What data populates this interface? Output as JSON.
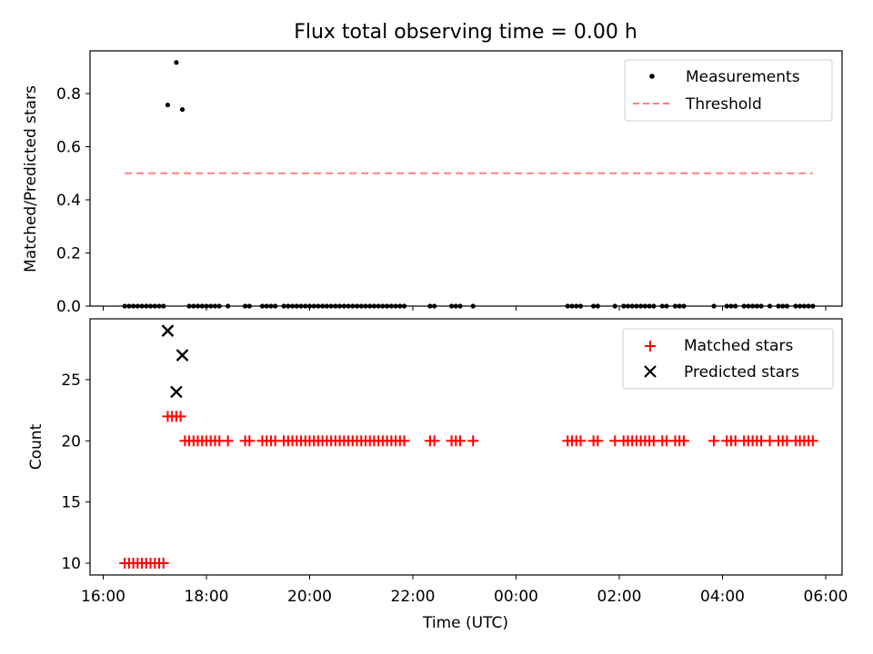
{
  "chart_data": [
    {
      "type": "scatter",
      "title": "Flux total observing time = 0.00 h",
      "xlabel": "",
      "ylabel": "Matched/Predicted stars",
      "xlim": [
        "16:00",
        "06:00"
      ],
      "ylim": [
        0,
        0.95
      ],
      "y_ticks": [
        "0.0",
        "0.2",
        "0.4",
        "0.6",
        "0.8"
      ],
      "y_tick_values": [
        0,
        0.2,
        0.4,
        0.6,
        0.8
      ],
      "legend_position": "top-right",
      "series": [
        {
          "name": "Measurements",
          "marker": "dot",
          "color": "#000000",
          "points": [
            [
              "16:25",
              0
            ],
            [
              "16:30",
              0
            ],
            [
              "16:35",
              0
            ],
            [
              "16:40",
              0
            ],
            [
              "16:45",
              0
            ],
            [
              "16:50",
              0
            ],
            [
              "16:55",
              0
            ],
            [
              "17:00",
              0
            ],
            [
              "17:05",
              0
            ],
            [
              "17:10",
              0
            ],
            [
              "17:15",
              0.757
            ],
            [
              "17:25",
              0.917
            ],
            [
              "17:32",
              0.74
            ],
            [
              "17:40",
              0
            ],
            [
              "17:45",
              0
            ],
            [
              "17:50",
              0
            ],
            [
              "17:55",
              0
            ],
            [
              "18:00",
              0
            ],
            [
              "18:05",
              0
            ],
            [
              "18:10",
              0
            ],
            [
              "18:15",
              0
            ],
            [
              "18:25",
              0
            ],
            [
              "18:45",
              0
            ],
            [
              "18:50",
              0
            ],
            [
              "19:05",
              0
            ],
            [
              "19:10",
              0
            ],
            [
              "19:15",
              0
            ],
            [
              "19:20",
              0
            ],
            [
              "19:30",
              0
            ],
            [
              "19:35",
              0
            ],
            [
              "19:40",
              0
            ],
            [
              "19:45",
              0
            ],
            [
              "19:50",
              0
            ],
            [
              "19:55",
              0
            ],
            [
              "20:00",
              0
            ],
            [
              "20:05",
              0
            ],
            [
              "20:10",
              0
            ],
            [
              "20:15",
              0
            ],
            [
              "20:20",
              0
            ],
            [
              "20:25",
              0
            ],
            [
              "20:30",
              0
            ],
            [
              "20:35",
              0
            ],
            [
              "20:40",
              0
            ],
            [
              "20:45",
              0
            ],
            [
              "20:50",
              0
            ],
            [
              "20:55",
              0
            ],
            [
              "21:00",
              0
            ],
            [
              "21:05",
              0
            ],
            [
              "21:10",
              0
            ],
            [
              "21:15",
              0
            ],
            [
              "21:20",
              0
            ],
            [
              "21:25",
              0
            ],
            [
              "21:30",
              0
            ],
            [
              "21:35",
              0
            ],
            [
              "21:40",
              0
            ],
            [
              "21:45",
              0
            ],
            [
              "21:50",
              0
            ],
            [
              "22:20",
              0
            ],
            [
              "22:25",
              0
            ],
            [
              "22:45",
              0
            ],
            [
              "22:50",
              0
            ],
            [
              "22:55",
              0
            ],
            [
              "23:10",
              0
            ],
            [
              "01:00",
              0
            ],
            [
              "01:05",
              0
            ],
            [
              "01:10",
              0
            ],
            [
              "01:15",
              0
            ],
            [
              "01:30",
              0
            ],
            [
              "01:35",
              0
            ],
            [
              "01:55",
              0
            ],
            [
              "02:05",
              0
            ],
            [
              "02:10",
              0
            ],
            [
              "02:15",
              0
            ],
            [
              "02:20",
              0
            ],
            [
              "02:25",
              0
            ],
            [
              "02:30",
              0
            ],
            [
              "02:35",
              0
            ],
            [
              "02:40",
              0
            ],
            [
              "02:50",
              0
            ],
            [
              "02:55",
              0
            ],
            [
              "03:05",
              0
            ],
            [
              "03:10",
              0
            ],
            [
              "03:15",
              0
            ],
            [
              "03:50",
              0
            ],
            [
              "04:05",
              0
            ],
            [
              "04:10",
              0
            ],
            [
              "04:15",
              0
            ],
            [
              "04:25",
              0
            ],
            [
              "04:30",
              0
            ],
            [
              "04:35",
              0
            ],
            [
              "04:40",
              0
            ],
            [
              "04:45",
              0
            ],
            [
              "04:55",
              0
            ],
            [
              "05:05",
              0
            ],
            [
              "05:10",
              0
            ],
            [
              "05:15",
              0
            ],
            [
              "05:25",
              0
            ],
            [
              "05:30",
              0
            ],
            [
              "05:35",
              0
            ],
            [
              "05:40",
              0
            ],
            [
              "05:45",
              0
            ]
          ]
        },
        {
          "name": "Threshold",
          "marker": "dashed-line",
          "color": "#ff7f7f",
          "points": [
            [
              "16:25",
              0.5
            ],
            [
              "05:45",
              0.5
            ]
          ]
        }
      ]
    },
    {
      "type": "scatter",
      "title": "",
      "xlabel": "Time (UTC)",
      "ylabel": "Count",
      "xlim": [
        "16:00",
        "06:00"
      ],
      "ylim": [
        9.2,
        29.7
      ],
      "x_ticks": [
        "16:00",
        "18:00",
        "20:00",
        "22:00",
        "00:00",
        "02:00",
        "04:00",
        "06:00"
      ],
      "y_ticks": [
        "10",
        "15",
        "20",
        "25"
      ],
      "y_tick_values": [
        10,
        15,
        20,
        25
      ],
      "legend_position": "top-right",
      "series": [
        {
          "name": "Matched stars",
          "marker": "plus",
          "color": "#ff0000",
          "points": [
            [
              "16:25",
              10
            ],
            [
              "16:30",
              10
            ],
            [
              "16:35",
              10
            ],
            [
              "16:40",
              10
            ],
            [
              "16:45",
              10
            ],
            [
              "16:50",
              10
            ],
            [
              "16:55",
              10
            ],
            [
              "17:00",
              10
            ],
            [
              "17:05",
              10
            ],
            [
              "17:10",
              10
            ],
            [
              "17:15",
              22
            ],
            [
              "17:20",
              22
            ],
            [
              "17:25",
              22
            ],
            [
              "17:30",
              22
            ],
            [
              "17:35",
              20
            ],
            [
              "17:40",
              20
            ],
            [
              "17:45",
              20
            ],
            [
              "17:50",
              20
            ],
            [
              "17:55",
              20
            ],
            [
              "18:00",
              20
            ],
            [
              "18:05",
              20
            ],
            [
              "18:10",
              20
            ],
            [
              "18:15",
              20
            ],
            [
              "18:25",
              20
            ],
            [
              "18:45",
              20
            ],
            [
              "18:50",
              20
            ],
            [
              "19:05",
              20
            ],
            [
              "19:10",
              20
            ],
            [
              "19:15",
              20
            ],
            [
              "19:20",
              20
            ],
            [
              "19:30",
              20
            ],
            [
              "19:35",
              20
            ],
            [
              "19:40",
              20
            ],
            [
              "19:45",
              20
            ],
            [
              "19:50",
              20
            ],
            [
              "19:55",
              20
            ],
            [
              "20:00",
              20
            ],
            [
              "20:05",
              20
            ],
            [
              "20:10",
              20
            ],
            [
              "20:15",
              20
            ],
            [
              "20:20",
              20
            ],
            [
              "20:25",
              20
            ],
            [
              "20:30",
              20
            ],
            [
              "20:35",
              20
            ],
            [
              "20:40",
              20
            ],
            [
              "20:45",
              20
            ],
            [
              "20:50",
              20
            ],
            [
              "20:55",
              20
            ],
            [
              "21:00",
              20
            ],
            [
              "21:05",
              20
            ],
            [
              "21:10",
              20
            ],
            [
              "21:15",
              20
            ],
            [
              "21:20",
              20
            ],
            [
              "21:25",
              20
            ],
            [
              "21:30",
              20
            ],
            [
              "21:35",
              20
            ],
            [
              "21:40",
              20
            ],
            [
              "21:45",
              20
            ],
            [
              "21:50",
              20
            ],
            [
              "22:20",
              20
            ],
            [
              "22:25",
              20
            ],
            [
              "22:45",
              20
            ],
            [
              "22:50",
              20
            ],
            [
              "22:55",
              20
            ],
            [
              "23:10",
              20
            ],
            [
              "01:00",
              20
            ],
            [
              "01:05",
              20
            ],
            [
              "01:10",
              20
            ],
            [
              "01:15",
              20
            ],
            [
              "01:30",
              20
            ],
            [
              "01:35",
              20
            ],
            [
              "01:55",
              20
            ],
            [
              "02:05",
              20
            ],
            [
              "02:10",
              20
            ],
            [
              "02:15",
              20
            ],
            [
              "02:20",
              20
            ],
            [
              "02:25",
              20
            ],
            [
              "02:30",
              20
            ],
            [
              "02:35",
              20
            ],
            [
              "02:40",
              20
            ],
            [
              "02:50",
              20
            ],
            [
              "02:55",
              20
            ],
            [
              "03:05",
              20
            ],
            [
              "03:10",
              20
            ],
            [
              "03:15",
              20
            ],
            [
              "03:50",
              20
            ],
            [
              "04:05",
              20
            ],
            [
              "04:10",
              20
            ],
            [
              "04:15",
              20
            ],
            [
              "04:25",
              20
            ],
            [
              "04:30",
              20
            ],
            [
              "04:35",
              20
            ],
            [
              "04:40",
              20
            ],
            [
              "04:45",
              20
            ],
            [
              "04:55",
              20
            ],
            [
              "05:05",
              20
            ],
            [
              "05:10",
              20
            ],
            [
              "05:15",
              20
            ],
            [
              "05:25",
              20
            ],
            [
              "05:30",
              20
            ],
            [
              "05:35",
              20
            ],
            [
              "05:40",
              20
            ],
            [
              "05:45",
              20
            ]
          ]
        },
        {
          "name": "Predicted stars",
          "marker": "x",
          "color": "#000000",
          "points": [
            [
              "17:15",
              29
            ],
            [
              "17:25",
              24
            ],
            [
              "17:32",
              27
            ]
          ]
        }
      ]
    }
  ]
}
